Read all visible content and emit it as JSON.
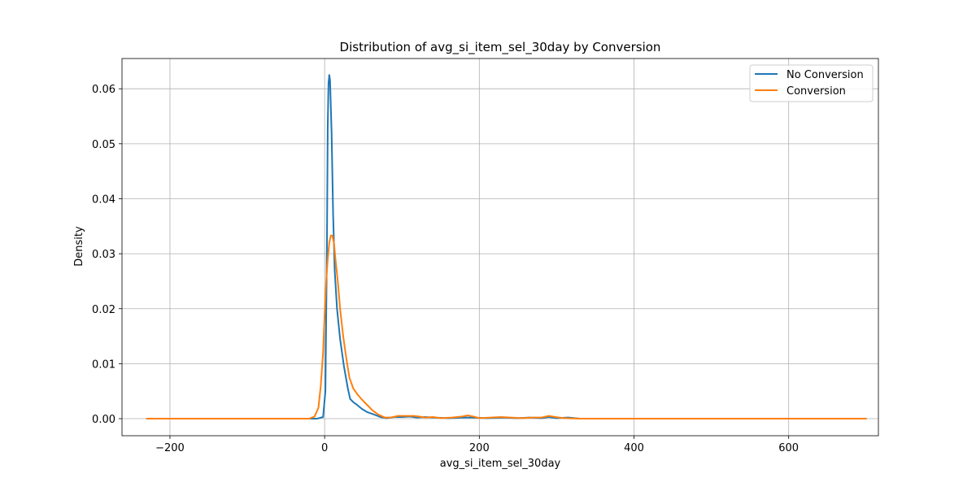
{
  "chart_data": {
    "type": "line",
    "title": "Distribution of avg_si_item_sel_30day by Conversion",
    "xlabel": "avg_si_item_sel_30day",
    "ylabel": "Density",
    "xlim": [
      -262,
      716
    ],
    "ylim": [
      -0.0031,
      0.0655
    ],
    "x_ticks": [
      -200,
      0,
      200,
      400,
      600
    ],
    "x_tick_labels": [
      "−200",
      "0",
      "200",
      "400",
      "600"
    ],
    "y_ticks": [
      0.0,
      0.01,
      0.02,
      0.03,
      0.04,
      0.05,
      0.06
    ],
    "y_tick_labels": [
      "0.00",
      "0.01",
      "0.02",
      "0.03",
      "0.04",
      "0.05",
      "0.06"
    ],
    "grid": true,
    "legend_position": "top-right",
    "series": [
      {
        "name": "No Conversion",
        "color": "#1f77b4",
        "points": [
          [
            -230,
            0
          ],
          [
            -10,
            0
          ],
          [
            -2,
            0.0003
          ],
          [
            1,
            0.005
          ],
          [
            3,
            0.032
          ],
          [
            4,
            0.053
          ],
          [
            5,
            0.061
          ],
          [
            6,
            0.0625
          ],
          [
            7,
            0.0615
          ],
          [
            9,
            0.052
          ],
          [
            11,
            0.037
          ],
          [
            13,
            0.027
          ],
          [
            16,
            0.02
          ],
          [
            20,
            0.0145
          ],
          [
            25,
            0.0095
          ],
          [
            30,
            0.0055
          ],
          [
            33,
            0.0036
          ],
          [
            37,
            0.003
          ],
          [
            42,
            0.0025
          ],
          [
            48,
            0.0018
          ],
          [
            55,
            0.0012
          ],
          [
            65,
            0.0007
          ],
          [
            72,
            0.0003
          ],
          [
            80,
            0.0001
          ],
          [
            90,
            0.0003
          ],
          [
            100,
            0.0003
          ],
          [
            110,
            0.0004
          ],
          [
            120,
            0.0002
          ],
          [
            130,
            0.0003
          ],
          [
            140,
            0.0002
          ],
          [
            160,
            0.0001
          ],
          [
            180,
            0.0002
          ],
          [
            190,
            0.0002
          ],
          [
            210,
            0.0001
          ],
          [
            230,
            0.0002
          ],
          [
            250,
            0.0001
          ],
          [
            265,
            0.0002
          ],
          [
            280,
            0.0001
          ],
          [
            290,
            0.0003
          ],
          [
            300,
            0.0001
          ],
          [
            315,
            0.0002
          ],
          [
            330,
            0.0
          ],
          [
            700,
            0
          ]
        ]
      },
      {
        "name": "Conversion",
        "color": "#ff7f0e",
        "points": [
          [
            -230,
            0
          ],
          [
            -20,
            0
          ],
          [
            -13,
            0.0004
          ],
          [
            -8,
            0.002
          ],
          [
            -5,
            0.006
          ],
          [
            -2,
            0.012
          ],
          [
            0,
            0.019
          ],
          [
            2,
            0.025
          ],
          [
            4,
            0.029
          ],
          [
            6,
            0.032
          ],
          [
            8,
            0.0333
          ],
          [
            10,
            0.0333
          ],
          [
            12,
            0.032
          ],
          [
            14,
            0.029
          ],
          [
            17,
            0.025
          ],
          [
            20,
            0.02
          ],
          [
            24,
            0.015
          ],
          [
            28,
            0.011
          ],
          [
            32,
            0.0075
          ],
          [
            37,
            0.0055
          ],
          [
            42,
            0.0045
          ],
          [
            48,
            0.0035
          ],
          [
            55,
            0.0025
          ],
          [
            62,
            0.0015
          ],
          [
            70,
            0.0007
          ],
          [
            78,
            0.0002
          ],
          [
            85,
            0.0002
          ],
          [
            95,
            0.0005
          ],
          [
            105,
            0.0005
          ],
          [
            115,
            0.0005
          ],
          [
            122,
            0.0004
          ],
          [
            130,
            0.0002
          ],
          [
            140,
            0.0003
          ],
          [
            150,
            0.0001
          ],
          [
            165,
            0.0002
          ],
          [
            178,
            0.0004
          ],
          [
            185,
            0.0006
          ],
          [
            192,
            0.0004
          ],
          [
            200,
            0.0001
          ],
          [
            215,
            0.0002
          ],
          [
            228,
            0.0003
          ],
          [
            240,
            0.0002
          ],
          [
            255,
            0.0001
          ],
          [
            270,
            0.0002
          ],
          [
            280,
            0.0002
          ],
          [
            290,
            0.0005
          ],
          [
            298,
            0.0003
          ],
          [
            310,
            0.0001
          ],
          [
            330,
            0.0
          ],
          [
            700,
            0
          ]
        ]
      }
    ]
  }
}
